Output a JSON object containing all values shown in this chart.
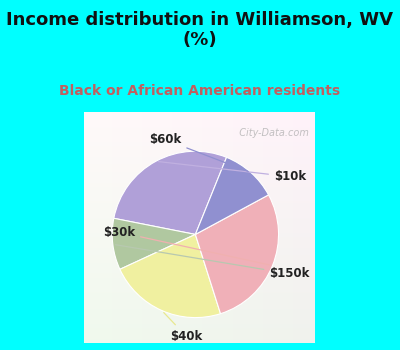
{
  "title": "Income distribution in Williamson, WV\n(%)",
  "subtitle": "Black or African American residents",
  "slices": [
    {
      "label": "$10k",
      "value": 28,
      "color": "#b0a0d8"
    },
    {
      "label": "$150k",
      "value": 10,
      "color": "#b0c8a0"
    },
    {
      "label": "$40k",
      "value": 23,
      "color": "#f0f0a0"
    },
    {
      "label": "$30k",
      "value": 28,
      "color": "#f0b0b8"
    },
    {
      "label": "$60k",
      "value": 11,
      "color": "#9090d0"
    }
  ],
  "startangle": 68,
  "title_color": "#111111",
  "subtitle_color": "#c06060",
  "title_fontsize": 13,
  "subtitle_fontsize": 10,
  "label_fontsize": 8.5,
  "bg_outer": "#00ffff",
  "watermark": "  City-Data.com",
  "watermark_color": "#aaaaaa",
  "label_line_colors": [
    "#c0b0e0",
    "#b8c8b0",
    "#e8e890",
    "#f0b0b0",
    "#9090d0"
  ]
}
